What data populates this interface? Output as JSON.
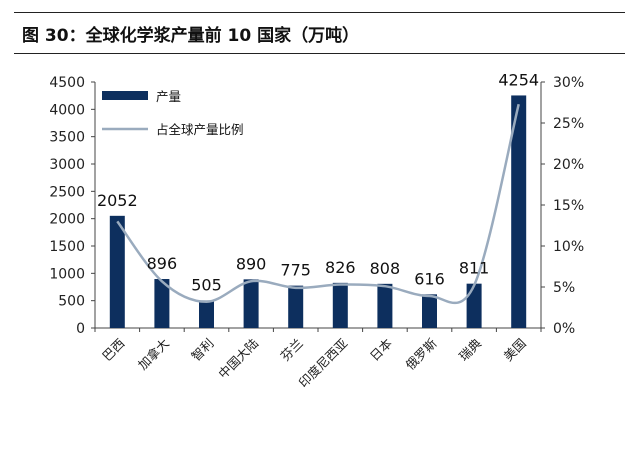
{
  "figure_title": "图 30：全球化学浆产量前 10 国家（万吨）",
  "chart_data": {
    "type": "bar+line",
    "categories": [
      "巴西",
      "加拿大",
      "智利",
      "中国大陆",
      "芬兰",
      "印度尼西亚",
      "日本",
      "俄罗斯",
      "瑞典",
      "美国"
    ],
    "series": [
      {
        "name": "产量",
        "type": "bar",
        "axis": "left",
        "color": "#0d2f5e",
        "values": [
          2052,
          896,
          505,
          890,
          775,
          826,
          808,
          616,
          811,
          4254
        ]
      },
      {
        "name": "占全球产量比例",
        "type": "line",
        "axis": "right",
        "color": "#9aabbe",
        "values": [
          13.0,
          5.7,
          3.2,
          5.7,
          4.9,
          5.3,
          5.1,
          3.9,
          5.2,
          27.3
        ]
      }
    ],
    "data_labels": [
      "2052",
      "896",
      "505",
      "890",
      "775",
      "826",
      "808",
      "616",
      "811",
      "4254"
    ],
    "y_left": {
      "ylim": [
        0,
        4500
      ],
      "ticks": [
        "0",
        "500",
        "1000",
        "1500",
        "2000",
        "2500",
        "3000",
        "3500",
        "4000",
        "4500"
      ]
    },
    "y_right": {
      "ylim": [
        0,
        30
      ],
      "ticks": [
        "0%",
        "5%",
        "10%",
        "15%",
        "20%",
        "25%",
        "30%"
      ]
    },
    "legend_position": "top-left",
    "grid": false
  }
}
